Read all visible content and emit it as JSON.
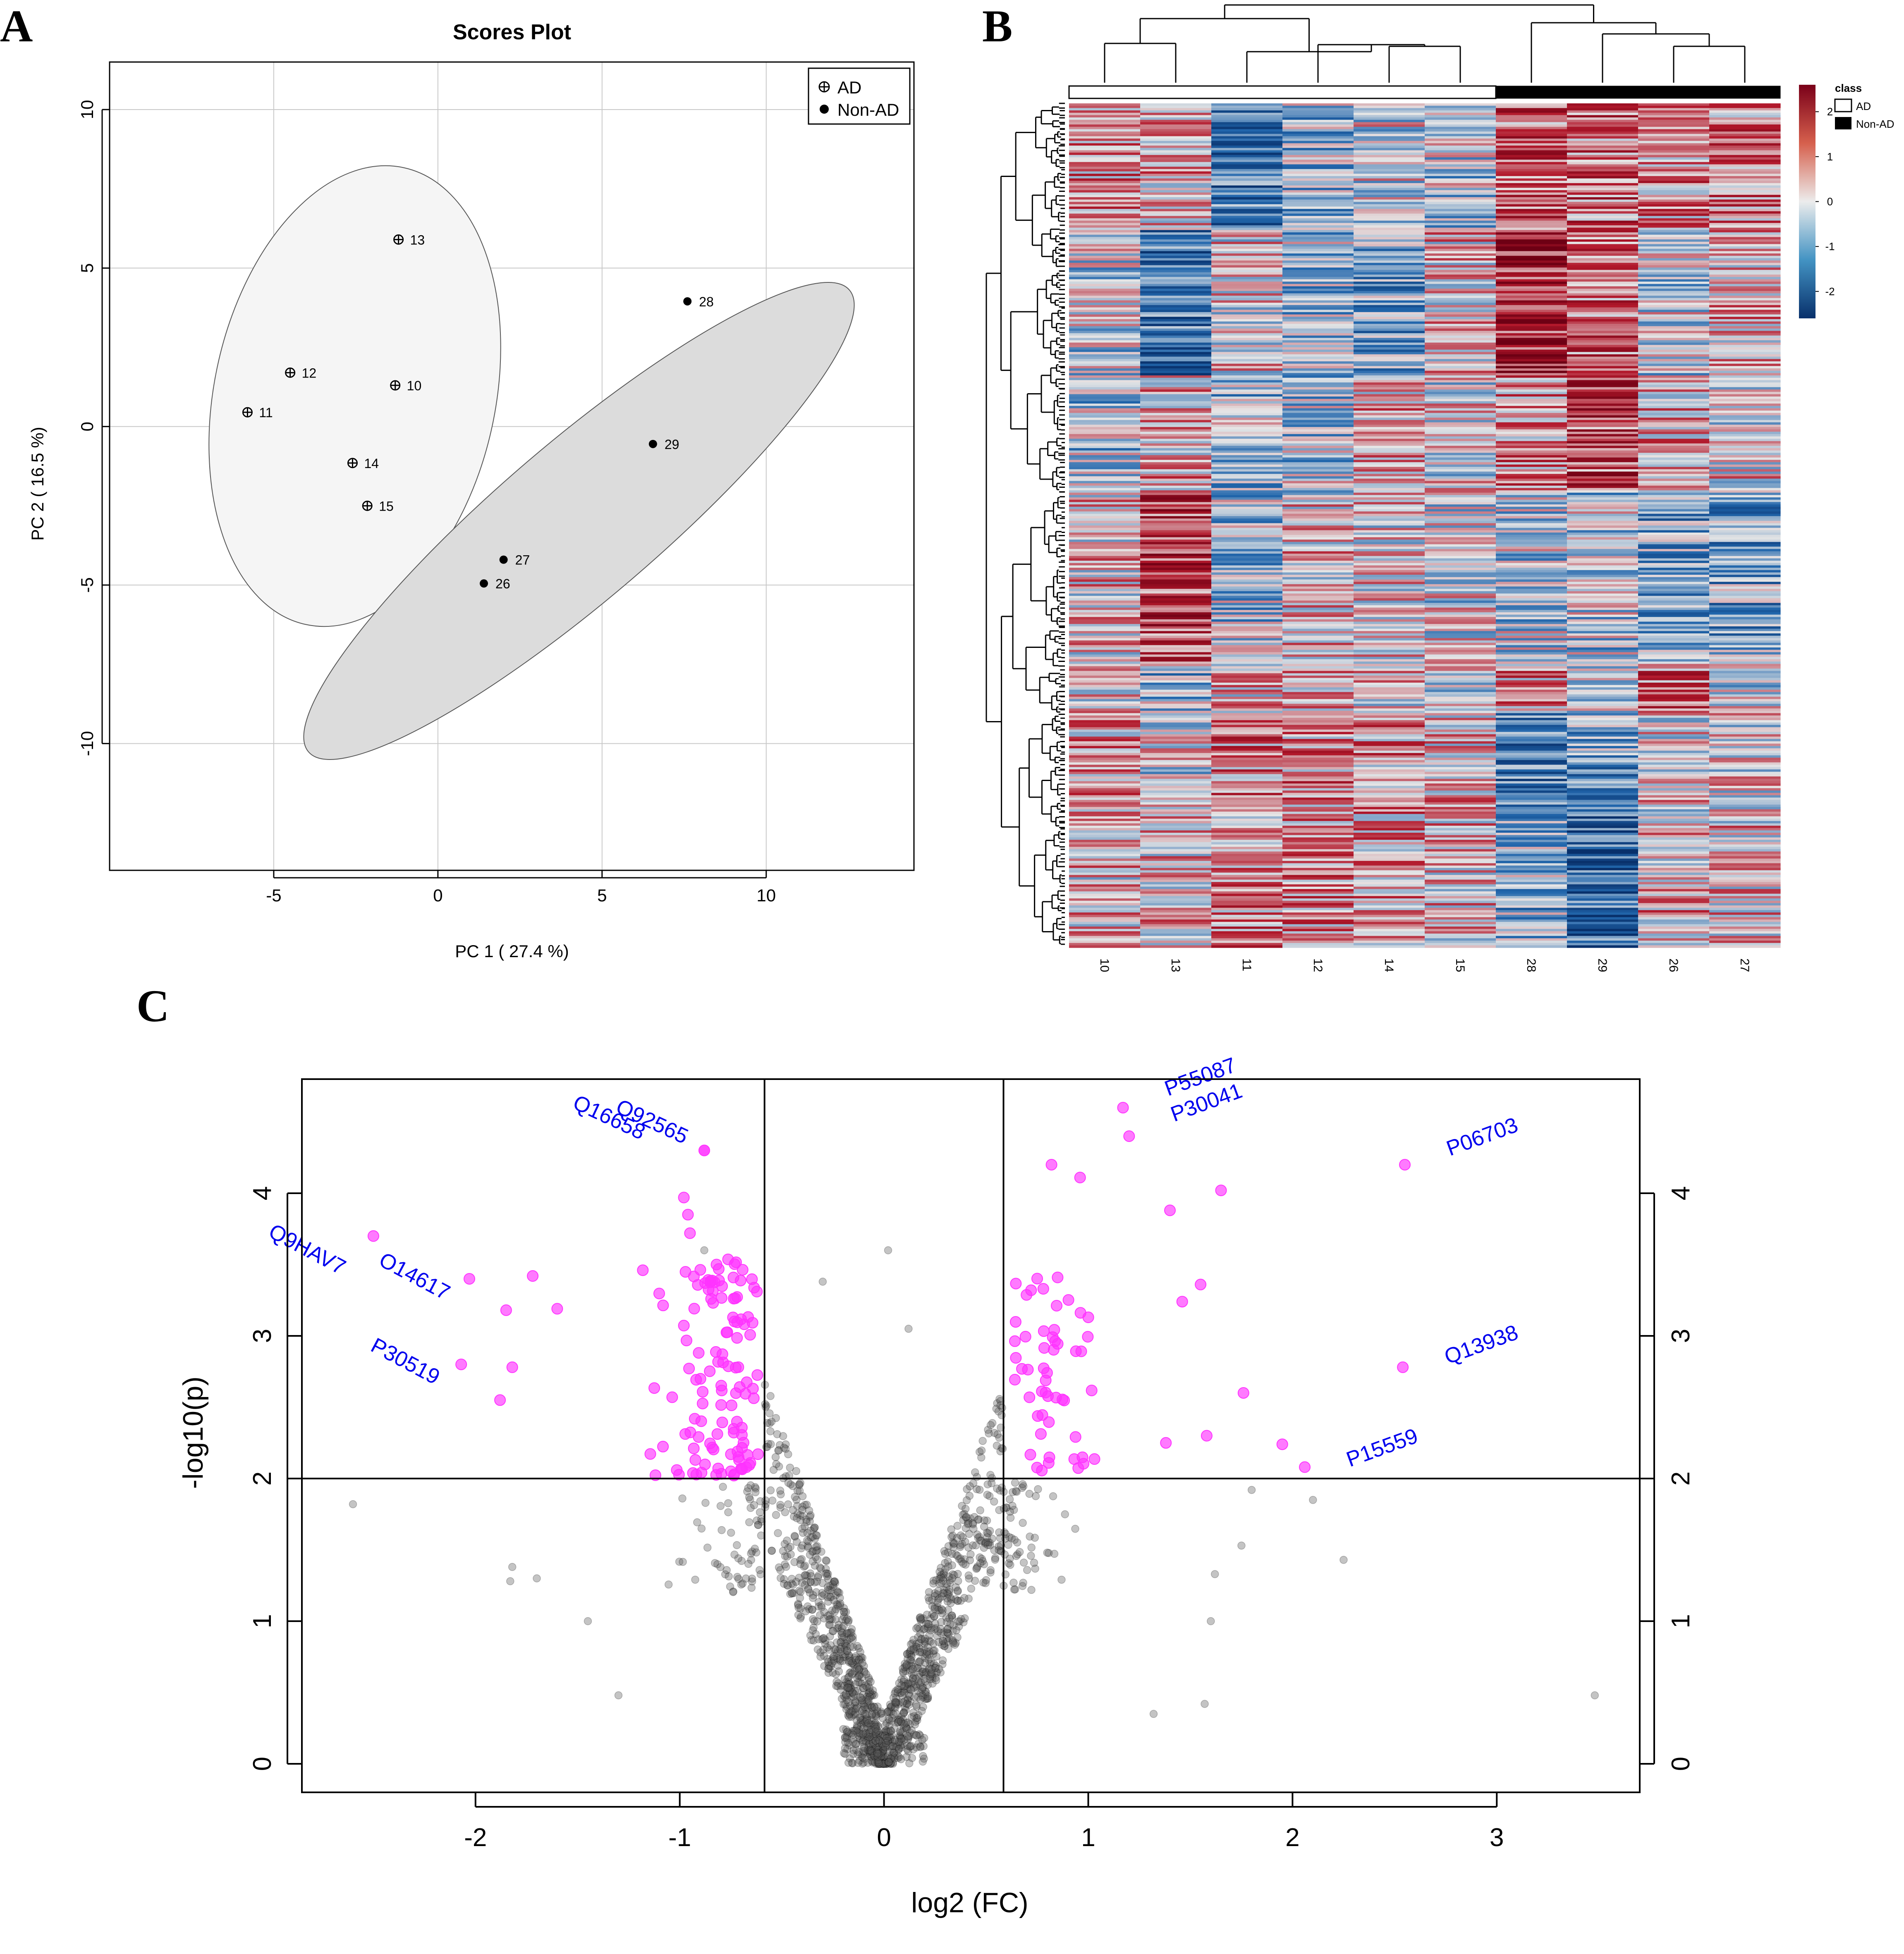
{
  "panels": {
    "a": {
      "letter": "A"
    },
    "b": {
      "letter": "B"
    },
    "c": {
      "letter": "C"
    }
  },
  "chart_data": [
    {
      "type": "scatter",
      "title": "Scores Plot",
      "xlabel": "PC 1 ( 27.4 %)",
      "ylabel": "PC 2 ( 16.5 %)",
      "xlim": [
        -10,
        14.5
      ],
      "ylim": [
        -14,
        11.5
      ],
      "xticks": [
        -5,
        0,
        5,
        10
      ],
      "yticks": [
        -10,
        -5,
        0,
        5,
        10
      ],
      "grid": true,
      "legend": {
        "position": "top-right",
        "entries": [
          "AD",
          "Non-AD"
        ]
      },
      "series": [
        {
          "name": "AD",
          "marker": "circle-plus",
          "points": [
            {
              "label": "13",
              "x": -1.2,
              "y": 5.9
            },
            {
              "label": "12",
              "x": -4.5,
              "y": 1.7
            },
            {
              "label": "10",
              "x": -1.3,
              "y": 1.3
            },
            {
              "label": "11",
              "x": -5.8,
              "y": 0.45
            },
            {
              "label": "14",
              "x": -2.6,
              "y": -1.15
            },
            {
              "label": "15",
              "x": -2.15,
              "y": -2.5
            }
          ]
        },
        {
          "name": "Non-AD",
          "marker": "filled-circle",
          "points": [
            {
              "label": "28",
              "x": 7.6,
              "y": 3.95
            },
            {
              "label": "29",
              "x": 6.55,
              "y": -0.55
            },
            {
              "label": "27",
              "x": 2.0,
              "y": -4.2
            },
            {
              "label": "26",
              "x": 1.4,
              "y": -4.95
            }
          ]
        }
      ],
      "ellipses": [
        {
          "group": "AD",
          "fill": "#f5f5f5"
        },
        {
          "group": "Non-AD",
          "fill": "#dcdcdc"
        }
      ]
    },
    {
      "type": "heatmap",
      "columns": [
        "10",
        "13",
        "11",
        "12",
        "14",
        "15",
        "28",
        "29",
        "26",
        "27"
      ],
      "column_class": [
        "AD",
        "AD",
        "AD",
        "AD",
        "AD",
        "AD",
        "Non-AD",
        "Non-AD",
        "Non-AD",
        "Non-AD"
      ],
      "legend_title": "class",
      "class_legend": [
        "AD",
        "Non-AD"
      ],
      "colorbar_ticks": [
        2,
        1,
        0,
        -1,
        -2
      ],
      "color_low": "#1f5fa8",
      "color_mid": "#e6e6e6",
      "color_high": "#a50f1e"
    },
    {
      "type": "scatter",
      "xlabel": "log2 (FC)",
      "ylabel": "-log10(p)",
      "xlim": [
        -2.85,
        3.7
      ],
      "ylim": [
        -0.2,
        4.8
      ],
      "xticks": [
        -2,
        -1,
        0,
        1,
        2,
        3
      ],
      "yticks": [
        0,
        1,
        2,
        3,
        4
      ],
      "thresholds": {
        "fc_low": -0.585,
        "fc_high": 0.585,
        "p": 2
      },
      "colors": {
        "significant": "#ff33ff",
        "other": "#555555",
        "label": "#0000ee"
      },
      "labeled_points": [
        {
          "label": "Q16658",
          "x": -0.88,
          "y": 4.3
        },
        {
          "label": "Q92565",
          "x": -0.88,
          "y": 4.3
        },
        {
          "label": "P55087",
          "x": 1.17,
          "y": 4.6
        },
        {
          "label": "P30041",
          "x": 1.2,
          "y": 4.4
        },
        {
          "label": "P06703",
          "x": 2.55,
          "y": 4.2
        },
        {
          "label": "Q9HAV7",
          "x": -2.5,
          "y": 3.7
        },
        {
          "label": "O14617",
          "x": -2.03,
          "y": 3.4
        },
        {
          "label": "P30519",
          "x": -2.07,
          "y": 2.8
        },
        {
          "label": "Q13938",
          "x": 2.54,
          "y": 2.78
        },
        {
          "label": "P15559",
          "x": 2.06,
          "y": 2.08
        }
      ]
    }
  ]
}
